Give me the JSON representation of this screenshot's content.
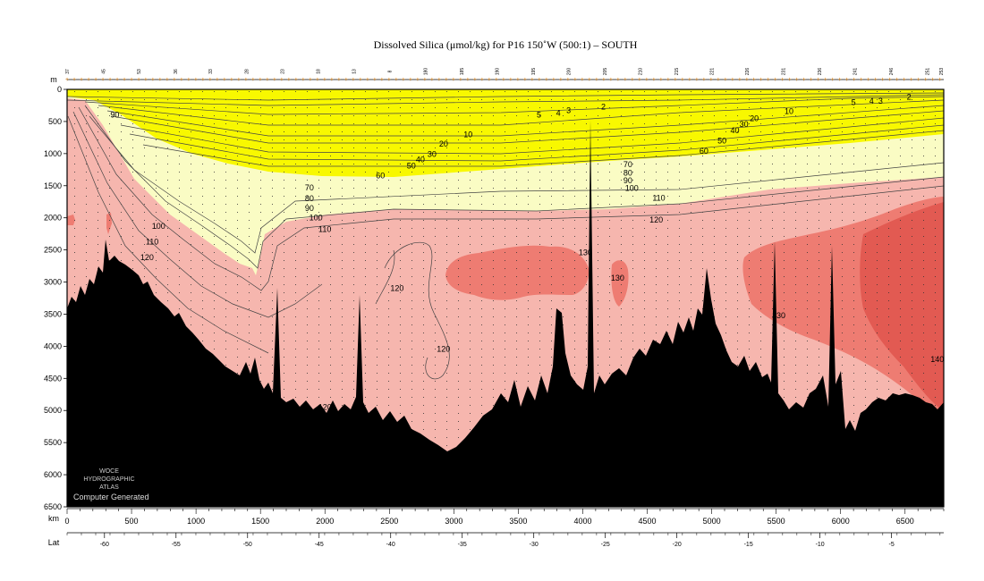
{
  "chart_data": {
    "type": "heatmap",
    "title": "Dissolved Silica (μmol/kg) for P16 150˚W (500:1) – SOUTH",
    "xlabel": "km",
    "ylabel": "m",
    "secondary_xlabel": "Lat",
    "xlim": [
      0,
      6800
    ],
    "ylim": [
      6500,
      0
    ],
    "x_ticks": [
      0,
      500,
      1000,
      1500,
      2000,
      2500,
      3000,
      3500,
      4000,
      4500,
      5000,
      5500,
      6000,
      6500
    ],
    "y_ticks": [
      0,
      500,
      1000,
      1500,
      2000,
      2500,
      3000,
      3500,
      4000,
      4500,
      5000,
      5500,
      6000,
      6500
    ],
    "lat_ticks": [
      {
        "label": "-60",
        "km": 290
      },
      {
        "label": "-55",
        "km": 845
      },
      {
        "label": "-50",
        "km": 1400
      },
      {
        "label": "-45",
        "km": 1955
      },
      {
        "label": "-40",
        "km": 2510
      },
      {
        "label": "-35",
        "km": 3065
      },
      {
        "label": "-30",
        "km": 3620
      },
      {
        "label": "-25",
        "km": 4175
      },
      {
        "label": "-20",
        "km": 4730
      },
      {
        "label": "-15",
        "km": 5285
      },
      {
        "label": "-10",
        "km": 5840
      },
      {
        "label": "-5",
        "km": 6395
      }
    ],
    "stations": [
      {
        "label": "37",
        "km": 0
      },
      {
        "label": "45",
        "km": 280
      },
      {
        "label": "53",
        "km": 555
      },
      {
        "label": "36",
        "km": 840
      },
      {
        "label": "33",
        "km": 1110
      },
      {
        "label": "28",
        "km": 1390
      },
      {
        "label": "23",
        "km": 1670
      },
      {
        "label": "18",
        "km": 1945
      },
      {
        "label": "13",
        "km": 2225
      },
      {
        "label": "8",
        "km": 2500
      },
      {
        "label": "180",
        "km": 2780
      },
      {
        "label": "185",
        "km": 3060
      },
      {
        "label": "190",
        "km": 3335
      },
      {
        "label": "195",
        "km": 3615
      },
      {
        "label": "200",
        "km": 3890
      },
      {
        "label": "205",
        "km": 4170
      },
      {
        "label": "210",
        "km": 4445
      },
      {
        "label": "215",
        "km": 4725
      },
      {
        "label": "221",
        "km": 5000
      },
      {
        "label": "226",
        "km": 5275
      },
      {
        "label": "231",
        "km": 5555
      },
      {
        "label": "236",
        "km": 5835
      },
      {
        "label": "241",
        "km": 6110
      },
      {
        "label": "246",
        "km": 6390
      },
      {
        "label": "251",
        "km": 6670
      },
      {
        "label": "253",
        "km": 6780
      }
    ],
    "color_classes": [
      {
        "range": "0-60",
        "color": "#f8f800"
      },
      {
        "range": "60-100",
        "color": "#fafcc4"
      },
      {
        "range": "100-130",
        "color": "#f6b6ae"
      },
      {
        "range": "130-140",
        "color": "#ee7c72"
      },
      {
        "range": "140+",
        "color": "#e25a52"
      }
    ],
    "contour_labels": [
      {
        "text": "90",
        "km": 370,
        "depth": 400
      },
      {
        "text": "100",
        "km": 710,
        "depth": 2130
      },
      {
        "text": "110",
        "km": 660,
        "depth": 2370
      },
      {
        "text": "120",
        "km": 620,
        "depth": 2620
      },
      {
        "text": "70",
        "km": 1880,
        "depth": 1530
      },
      {
        "text": "80",
        "km": 1880,
        "depth": 1700
      },
      {
        "text": "90",
        "km": 1880,
        "depth": 1850
      },
      {
        "text": "100",
        "km": 1930,
        "depth": 2000
      },
      {
        "text": "110",
        "km": 2000,
        "depth": 2180
      },
      {
        "text": "60",
        "km": 2430,
        "depth": 1340
      },
      {
        "text": "50",
        "km": 2670,
        "depth": 1190
      },
      {
        "text": "40",
        "km": 2740,
        "depth": 1090
      },
      {
        "text": "30",
        "km": 2830,
        "depth": 1010
      },
      {
        "text": "20",
        "km": 2920,
        "depth": 850
      },
      {
        "text": "10",
        "km": 3110,
        "depth": 700
      },
      {
        "text": "5",
        "km": 3660,
        "depth": 400
      },
      {
        "text": "4",
        "km": 3810,
        "depth": 370
      },
      {
        "text": "3",
        "km": 3890,
        "depth": 330
      },
      {
        "text": "2",
        "km": 4160,
        "depth": 270
      },
      {
        "text": "70",
        "km": 4350,
        "depth": 1170
      },
      {
        "text": "80",
        "km": 4350,
        "depth": 1300
      },
      {
        "text": "90",
        "km": 4350,
        "depth": 1420
      },
      {
        "text": "100",
        "km": 4380,
        "depth": 1540
      },
      {
        "text": "110",
        "km": 4590,
        "depth": 1690
      },
      {
        "text": "120",
        "km": 4570,
        "depth": 2030
      },
      {
        "text": "60",
        "km": 4940,
        "depth": 960
      },
      {
        "text": "50",
        "km": 5080,
        "depth": 800
      },
      {
        "text": "40",
        "km": 5180,
        "depth": 640
      },
      {
        "text": "30",
        "km": 5250,
        "depth": 540
      },
      {
        "text": "20",
        "km": 5330,
        "depth": 450
      },
      {
        "text": "10",
        "km": 5600,
        "depth": 340
      },
      {
        "text": "5",
        "km": 6100,
        "depth": 200
      },
      {
        "text": "4",
        "km": 6240,
        "depth": 180
      },
      {
        "text": "3",
        "km": 6310,
        "depth": 180
      },
      {
        "text": "2",
        "km": 6530,
        "depth": 120
      },
      {
        "text": "130",
        "km": 4020,
        "depth": 2540
      },
      {
        "text": "130",
        "km": 4270,
        "depth": 2940
      },
      {
        "text": "120",
        "km": 2560,
        "depth": 3100
      },
      {
        "text": "120",
        "km": 2920,
        "depth": 4040
      },
      {
        "text": "120",
        "km": 2000,
        "depth": 4950
      },
      {
        "text": "130",
        "km": 5520,
        "depth": 3520
      },
      {
        "text": "140",
        "km": 6750,
        "depth": 4200
      }
    ],
    "watermark": {
      "line1": "WOCE",
      "line2": "HYDROGRAPHIC",
      "line3": "ATLAS",
      "caption": "Computer Generated"
    },
    "legend": "none",
    "grid": false
  }
}
